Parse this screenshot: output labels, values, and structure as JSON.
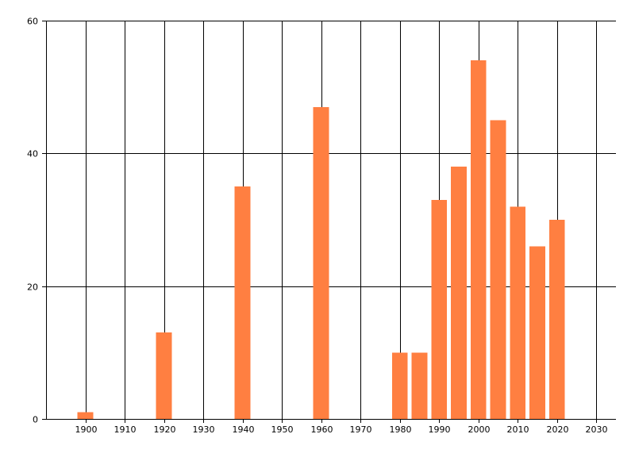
{
  "chart_data": {
    "type": "bar",
    "title": "",
    "xlabel": "",
    "ylabel": "",
    "x": [
      1900,
      1920,
      1940,
      1960,
      1980,
      1985,
      1990,
      1995,
      2000,
      2005,
      2010,
      2015,
      2020
    ],
    "values": [
      1,
      13,
      35,
      47,
      10,
      10,
      33,
      38,
      54,
      45,
      32,
      26,
      30
    ],
    "xlim": [
      1890,
      2035
    ],
    "ylim": [
      0,
      60
    ],
    "xticks": [
      1900,
      1910,
      1920,
      1930,
      1940,
      1950,
      1960,
      1970,
      1980,
      1990,
      2000,
      2010,
      2020,
      2030
    ],
    "yticks": [
      0,
      20,
      40,
      60
    ],
    "bar_width_years": 4,
    "grid": true,
    "bar_color": "#ff7f41"
  }
}
